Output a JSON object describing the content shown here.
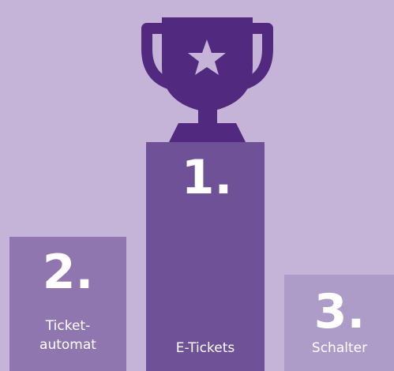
{
  "podium": [
    {
      "rank": "2.",
      "label": [
        "Ticket-",
        "automat"
      ]
    },
    {
      "rank": "1.",
      "label": [
        "E-Tickets"
      ]
    },
    {
      "rank": "3.",
      "label": [
        "Schalter"
      ]
    }
  ]
}
